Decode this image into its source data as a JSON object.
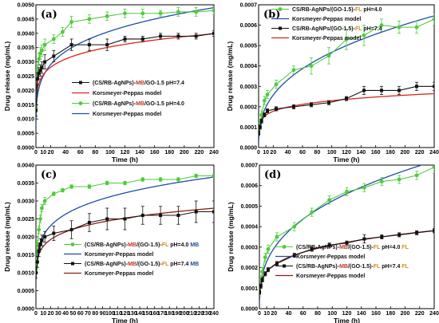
{
  "colors": {
    "black": "#111111",
    "green": "#4fcb3a",
    "red": "#e0241b",
    "blue": "#1d4fa8",
    "brown": "#8a1f12",
    "mb_text": "#c0392b",
    "mb_tag": "#1f4e9e",
    "fl_text": "#d38b1c"
  },
  "chart_data": [
    {
      "type": "scatter",
      "panel_label": "(a)",
      "xlabel": "Time (h)",
      "ylabel": "Drug release (mg/mL)",
      "xlim": [
        0,
        240
      ],
      "ylim": [
        0,
        0.005
      ],
      "xticks": [
        "0",
        "10",
        "20",
        "40",
        "60",
        "80",
        "100",
        "120",
        "140",
        "160",
        "180",
        "200",
        "220",
        "240"
      ],
      "yticks": [
        "0.0000",
        "0.0005",
        "0.0010",
        "0.0015",
        "0.0020",
        "0.0025",
        "0.0030",
        "0.0035",
        "0.0040",
        "0.0045",
        "0.0050"
      ],
      "legend": [
        {
          "marker": "square",
          "color": "black",
          "parts": [
            [
              "(CS/RB-AgNPs)-",
              "black"
            ],
            [
              "MB",
              "mb_text"
            ],
            [
              "/GO-1.5 pH=7.4",
              "black"
            ]
          ]
        },
        {
          "line": "red",
          "parts": [
            [
              "Korsmeyer-Peppas model",
              "black"
            ]
          ]
        },
        {
          "marker": "circle",
          "color": "green",
          "parts": [
            [
              "(CS/RB-AgNPs)-",
              "black"
            ],
            [
              "MB",
              "mb_text"
            ],
            [
              "/GO-1.5 pH=4.0",
              "black"
            ]
          ]
        },
        {
          "line": "blue",
          "parts": [
            [
              "Korsmeyer-Peppas model",
              "black"
            ]
          ]
        }
      ],
      "series": [
        {
          "name": "(CS/RB-AgNPs)-MB/GO-1.5 pH=4.0",
          "color": "green",
          "marker": "circle",
          "x": [
            0,
            2,
            4,
            6,
            8,
            12,
            24,
            36,
            48,
            72,
            96,
            120,
            144,
            168,
            192,
            216,
            240
          ],
          "y": [
            0.0014,
            0.0027,
            0.0031,
            0.0033,
            0.0034,
            0.0036,
            0.0038,
            0.00405,
            0.0044,
            0.0045,
            0.0046,
            0.0047,
            0.0047,
            0.0047,
            0.00475,
            0.00475,
            0.0048
          ],
          "err": [
            0.0003,
            0.0002,
            0.0002,
            0.0002,
            0.0002,
            0.0002,
            0.00015,
            0.00015,
            0.0002,
            0.00015,
            0.00015,
            0.00015,
            0.00015,
            0.0001,
            0.00015,
            0.00015,
            0.00015
          ]
        },
        {
          "name": "(CS/RB-AgNPs)-MB/GO-1.5 pH=7.4",
          "color": "black",
          "marker": "square",
          "x": [
            0,
            2,
            4,
            6,
            8,
            12,
            24,
            48,
            72,
            96,
            120,
            144,
            168,
            192,
            216,
            240
          ],
          "y": [
            0.0013,
            0.0024,
            0.0026,
            0.0027,
            0.0028,
            0.003,
            0.0032,
            0.0036,
            0.0036,
            0.0036,
            0.0038,
            0.0038,
            0.0039,
            0.0039,
            0.0039,
            0.004
          ],
          "err": [
            0.0002,
            0.0002,
            0.0002,
            0.0002,
            0.0002,
            0.00025,
            0.0002,
            0.0002,
            0.0002,
            0.0002,
            0.0001,
            0.0001,
            0.0001,
            0.0001,
            0.0001,
            0.0001
          ]
        },
        {
          "name": "Korsmeyer-Peppas model",
          "color": "blue",
          "model": true,
          "k": 0.00155,
          "n": 0.21
        },
        {
          "name": "Korsmeyer-Peppas model",
          "color": "red",
          "model": true,
          "k": 0.00185,
          "n": 0.14
        }
      ]
    },
    {
      "type": "scatter",
      "panel_label": "(b)",
      "xlabel": "Time (h)",
      "ylabel": "Drug release (mg/mL)",
      "xlim": [
        0,
        240
      ],
      "ylim": [
        0,
        0.0007
      ],
      "xticks": [
        "0",
        "10",
        "20",
        "40",
        "60",
        "80",
        "100",
        "120",
        "140",
        "160",
        "180",
        "200",
        "220",
        "240"
      ],
      "yticks": [
        "0.0000",
        "0.0001",
        "0.0002",
        "0.0003",
        "0.0004",
        "0.0005",
        "0.0006",
        "0.0007"
      ],
      "legend": [
        {
          "marker": "circle",
          "color": "green",
          "parts": [
            [
              "CS/RB-AgNPs/(GO-1.5)-",
              "black"
            ],
            [
              "FL",
              "fl_text"
            ],
            [
              " pH=4.0",
              "black"
            ]
          ]
        },
        {
          "line": "blue",
          "parts": [
            [
              "Korsmeyer-Peppas model",
              "black"
            ]
          ]
        },
        {
          "marker": "square",
          "color": "black",
          "parts": [
            [
              "CS/RB-AgNPs/(GO-1.5)-",
              "black"
            ],
            [
              "FL",
              "fl_text"
            ],
            [
              " pH=7.4",
              "black"
            ]
          ]
        },
        {
          "line": "red",
          "parts": [
            [
              "Korsmeyer-Peppas model",
              "black"
            ]
          ]
        }
      ],
      "series": [
        {
          "name": "CS/RB-AgNPs/(GO-1.5)-FL pH=4.0",
          "color": "green",
          "marker": "circle",
          "x": [
            0,
            2,
            4,
            8,
            12,
            24,
            48,
            72,
            96,
            120,
            144,
            168,
            192,
            216,
            240
          ],
          "y": [
            8e-05,
            0.00012,
            0.00016,
            0.00023,
            0.00026,
            0.00031,
            0.00038,
            0.0004,
            0.00045,
            0.00053,
            0.00055,
            0.0006,
            0.00059,
            0.00059,
            0.00063
          ],
          "err": [
            2e-05,
            2e-05,
            2e-05,
            2e-05,
            2e-05,
            2e-05,
            2e-05,
            4e-05,
            4e-05,
            5e-05,
            5e-05,
            3e-05,
            3e-05,
            3e-05,
            3e-05
          ]
        },
        {
          "name": "CS/RB-AgNPs/(GO-1.5)-FL pH=7.4",
          "color": "black",
          "marker": "square",
          "x": [
            0,
            2,
            4,
            8,
            12,
            24,
            48,
            72,
            96,
            120,
            144,
            168,
            192,
            216,
            240
          ],
          "y": [
            7e-05,
            0.0001,
            0.00013,
            0.00016,
            0.00018,
            0.00019,
            0.0002,
            0.00021,
            0.00022,
            0.00024,
            0.00028,
            0.00028,
            0.00028,
            0.0003,
            0.0003
          ],
          "err": [
            1e-05,
            1e-05,
            1e-05,
            1e-05,
            1e-05,
            1e-05,
            1e-05,
            1e-05,
            1e-05,
            1e-05,
            2e-05,
            2e-05,
            2e-05,
            2e-05,
            2e-05
          ]
        },
        {
          "name": "Korsmeyer-Peppas model",
          "color": "blue",
          "model": true,
          "k": 8.5e-05,
          "n": 0.37
        },
        {
          "name": "Korsmeyer-Peppas model",
          "color": "red",
          "model": true,
          "k": 0.00011,
          "n": 0.16
        }
      ]
    },
    {
      "type": "scatter",
      "panel_label": "(c)",
      "xlabel": "Time (h)",
      "ylabel": "Drug release (mg/mL)",
      "xlim": [
        0,
        240
      ],
      "ylim": [
        0,
        0.004
      ],
      "xticks": [
        "0",
        "10",
        "20",
        "30",
        "40",
        "50",
        "60",
        "70",
        "80",
        "90",
        "100",
        "110",
        "120",
        "130",
        "140",
        "150",
        "160",
        "170",
        "180",
        "190",
        "200",
        "210",
        "220",
        "230",
        "240"
      ],
      "yticks": [
        "0.0000",
        "0.0005",
        "0.0010",
        "0.0015",
        "0.0020",
        "0.0025",
        "0.0030",
        "0.0035",
        "0.0040"
      ],
      "legend": [
        {
          "marker": "circle",
          "color": "green",
          "parts": [
            [
              "(CS/RB-AgNPs)-",
              "black"
            ],
            [
              "MB",
              "mb_text"
            ],
            [
              "/(GO-1.5)-",
              "black"
            ],
            [
              "FL",
              "fl_text"
            ],
            [
              " pH=4.0 ",
              "black"
            ],
            [
              "MB",
              "mb_tag"
            ]
          ]
        },
        {
          "line": "blue",
          "parts": [
            [
              "Korsmeyer-Peppas model",
              "black"
            ]
          ]
        },
        {
          "marker": "square",
          "color": "black",
          "parts": [
            [
              "(CS/RB-AgNPs)-",
              "black"
            ],
            [
              "MB",
              "mb_text"
            ],
            [
              "/(GO-1.5)-",
              "black"
            ],
            [
              "FL",
              "fl_text"
            ],
            [
              " pH=7.4 ",
              "black"
            ],
            [
              "MB",
              "mb_tag"
            ]
          ]
        },
        {
          "line": "brown",
          "parts": [
            [
              "Korsmeyer-Peppas model",
              "black"
            ]
          ]
        }
      ],
      "series": [
        {
          "name": "(CS/RB-AgNPs)-MB/(GO-1.5)-FL pH=4.0 MB",
          "color": "green",
          "marker": "circle",
          "x": [
            0,
            1,
            2,
            4,
            6,
            8,
            12,
            24,
            36,
            48,
            72,
            96,
            120,
            144,
            168,
            192,
            216,
            240
          ],
          "y": [
            0.0011,
            0.0014,
            0.0018,
            0.0022,
            0.0025,
            0.0028,
            0.003,
            0.0032,
            0.0033,
            0.0034,
            0.0034,
            0.0035,
            0.0035,
            0.0036,
            0.0036,
            0.0036,
            0.0037,
            0.0037
          ],
          "err": [
            0.0001,
            0.0001,
            0.0001,
            0.0001,
            0.0001,
            0.0001,
            0.0001,
            5e-05,
            5e-05,
            5e-05,
            5e-05,
            5e-05,
            5e-05,
            5e-05,
            5e-05,
            5e-05,
            5e-05,
            5e-05
          ]
        },
        {
          "name": "(CS/RB-AgNPs)-MB/(GO-1.5)-FL pH=7.4 MB",
          "color": "black",
          "marker": "square",
          "x": [
            0,
            2,
            4,
            6,
            8,
            12,
            24,
            48,
            72,
            96,
            120,
            144,
            168,
            192,
            216,
            240
          ],
          "y": [
            0.001,
            0.0013,
            0.0016,
            0.0018,
            0.0019,
            0.002,
            0.0021,
            0.0022,
            0.0024,
            0.0025,
            0.0025,
            0.0026,
            0.0026,
            0.0026,
            0.0027,
            0.0027
          ],
          "err": [
            0.00015,
            0.00015,
            0.00015,
            0.00015,
            0.00015,
            0.00015,
            0.0002,
            0.00025,
            0.00025,
            0.0003,
            0.0003,
            0.00025,
            0.00025,
            0.00025,
            0.0003,
            0.0003
          ]
        },
        {
          "name": "Korsmeyer-Peppas model",
          "color": "blue",
          "model": true,
          "k": 0.00133,
          "n": 0.185
        },
        {
          "name": "Korsmeyer-Peppas model",
          "color": "brown",
          "model": true,
          "k": 0.00123,
          "n": 0.15
        }
      ]
    },
    {
      "type": "scatter",
      "panel_label": "(d)",
      "xlabel": "Time (h)",
      "ylabel": "Drug release (mg/mL)",
      "xlim": [
        0,
        240
      ],
      "ylim": [
        0,
        0.0007
      ],
      "xticks": [
        "0",
        "10",
        "20",
        "40",
        "60",
        "80",
        "100",
        "120",
        "140",
        "160",
        "180",
        "200",
        "220",
        "240"
      ],
      "yticks": [
        "0.0000",
        "0.0001",
        "0.0002",
        "0.0003",
        "0.0004",
        "0.0005",
        "0.0006",
        "0.0007"
      ],
      "legend": [
        {
          "marker": "circle",
          "color": "green",
          "parts": [
            [
              "(CS/RB-AgNPs)-",
              "black"
            ],
            [
              "MB",
              "mb_text"
            ],
            [
              "/(GO-1.5)-",
              "black"
            ],
            [
              "FL",
              "fl_text"
            ],
            [
              " pH=4.0 ",
              "black"
            ],
            [
              "FL",
              "fl_text"
            ]
          ]
        },
        {
          "line": "blue",
          "parts": [
            [
              "Korsmeyer-Peppas model",
              "black"
            ]
          ]
        },
        {
          "marker": "square",
          "color": "black",
          "parts": [
            [
              "(CS/RB-AgNPs)-",
              "black"
            ],
            [
              "MB",
              "mb_text"
            ],
            [
              "/(GO-1.5)-",
              "black"
            ],
            [
              "FL",
              "fl_text"
            ],
            [
              " pH=7.4 ",
              "black"
            ],
            [
              "FL",
              "fl_text"
            ]
          ]
        },
        {
          "line": "brown",
          "parts": [
            [
              "Korsmeyer-Peppas model",
              "black"
            ]
          ]
        }
      ],
      "series": [
        {
          "name": "(CS/RB-AgNPs)-MB/(GO-1.5)-FL pH=4.0 FL",
          "color": "green",
          "marker": "circle",
          "x": [
            0,
            2,
            4,
            8,
            12,
            24,
            48,
            72,
            96,
            120,
            144,
            168,
            192,
            216,
            240
          ],
          "y": [
            8e-05,
            0.00014,
            0.00018,
            0.00025,
            0.00029,
            0.00035,
            0.0004,
            0.00047,
            0.00053,
            0.00057,
            0.00059,
            0.00062,
            0.00063,
            0.00065,
            0.00069
          ],
          "err": [
            2e-05,
            2e-05,
            2e-05,
            2e-05,
            2e-05,
            2e-05,
            2e-05,
            2e-05,
            2e-05,
            2e-05,
            2e-05,
            2e-05,
            2e-05,
            2e-05,
            3e-05
          ]
        },
        {
          "name": "(CS/RB-AgNPs)-MB/(GO-1.5)-FL pH=7.4 FL",
          "color": "black",
          "marker": "square",
          "x": [
            0,
            2,
            4,
            8,
            12,
            24,
            48,
            72,
            96,
            120,
            144,
            168,
            192,
            216,
            240
          ],
          "y": [
            8e-05,
            0.00011,
            0.00014,
            0.00017,
            0.00019,
            0.00022,
            0.00026,
            0.00029,
            0.00031,
            0.00032,
            0.00034,
            0.00035,
            0.00036,
            0.00037,
            0.00038
          ],
          "err": [
            1e-05,
            1e-05,
            1e-05,
            1e-05,
            1e-05,
            1e-05,
            1e-05,
            1e-05,
            1e-05,
            1e-05,
            2e-05,
            1e-05,
            1e-05,
            1e-05,
            1e-05
          ]
        },
        {
          "name": "Korsmeyer-Peppas model",
          "color": "blue",
          "model": true,
          "k": 0.0001,
          "n": 0.36
        },
        {
          "name": "Korsmeyer-Peppas model",
          "color": "brown",
          "model": true,
          "k": 0.000105,
          "n": 0.235
        }
      ]
    }
  ]
}
